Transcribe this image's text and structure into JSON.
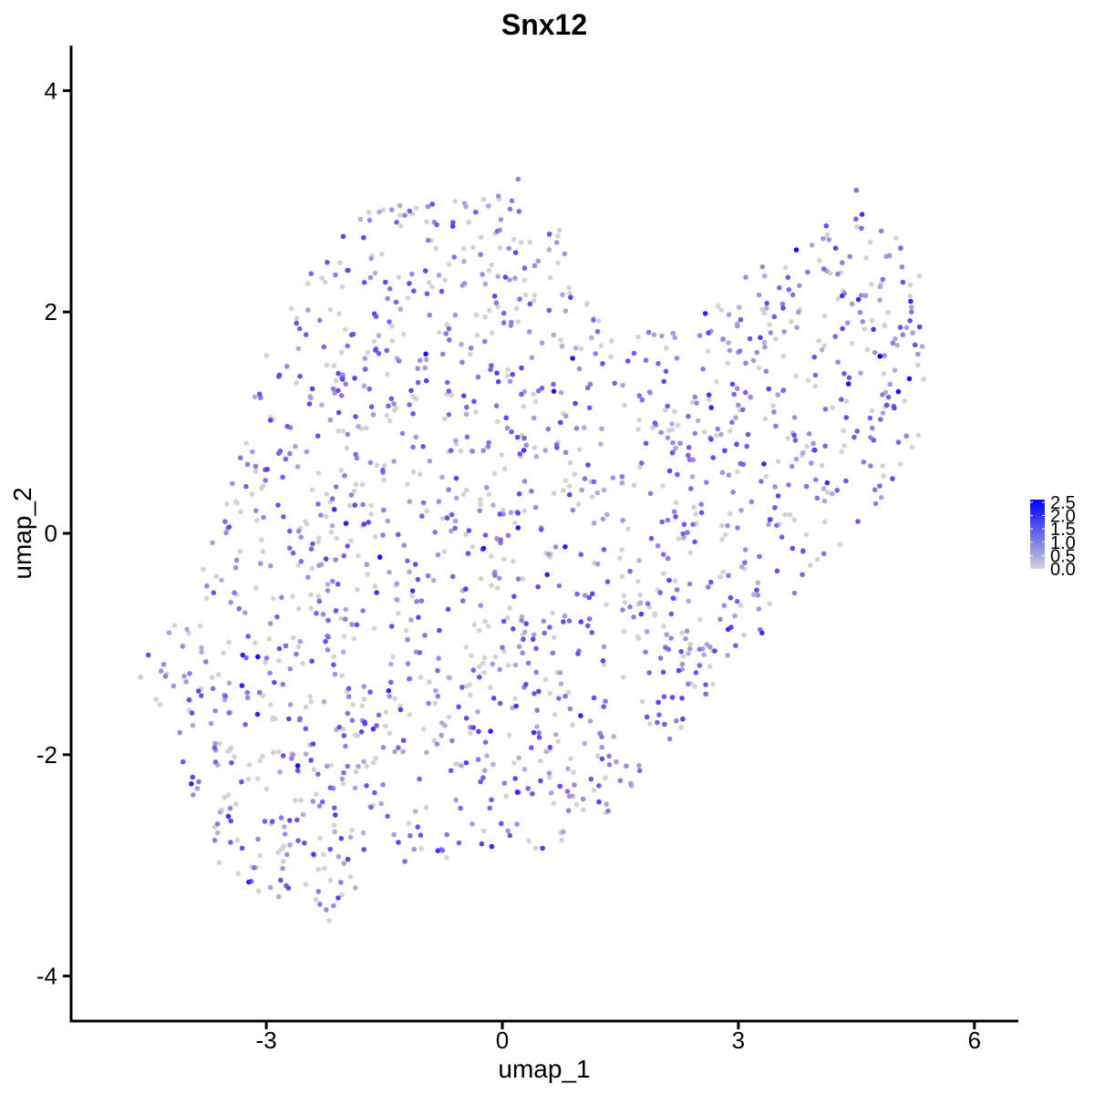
{
  "chart_data": {
    "type": "scatter",
    "title": "Snx12",
    "xlabel": "umap_1",
    "ylabel": "umap_2",
    "xlim": [
      -5.4,
      6.6
    ],
    "ylim": [
      -4.3,
      4.4
    ],
    "x_ticks": [
      -3,
      0,
      3,
      6
    ],
    "y_ticks": [
      -4,
      -2,
      0,
      2,
      4
    ],
    "x_tick_labels": [
      "-3",
      "0",
      "3",
      "6"
    ],
    "y_tick_labels": [
      "-4",
      "-2",
      "0",
      "2",
      "4"
    ],
    "grid": false,
    "legend": {
      "placement": "right",
      "type": "colorbar",
      "min": 0.0,
      "max": 2.6,
      "ticks": [
        0.0,
        0.5,
        1.0,
        1.5,
        2.0,
        2.5
      ],
      "labels": [
        "0.0",
        "0.5",
        "1.0",
        "1.5",
        "2.0",
        "2.5"
      ],
      "low_color": "#d3d3d3",
      "high_color": "#0000ff"
    },
    "cluster_outline": [
      [
        -4.6,
        -1.3
      ],
      [
        -4.2,
        -1.8
      ],
      [
        -4.0,
        -2.4
      ],
      [
        -3.6,
        -3.0
      ],
      [
        -3.0,
        -3.3
      ],
      [
        -2.3,
        -3.5
      ],
      [
        -1.7,
        -3.1
      ],
      [
        -1.0,
        -2.9
      ],
      [
        -0.2,
        -3.0
      ],
      [
        0.6,
        -2.9
      ],
      [
        1.4,
        -2.5
      ],
      [
        2.2,
        -1.9
      ],
      [
        2.8,
        -1.3
      ],
      [
        3.5,
        -0.7
      ],
      [
        4.2,
        -0.2
      ],
      [
        4.9,
        0.2
      ],
      [
        5.3,
        0.9
      ],
      [
        5.4,
        1.6
      ],
      [
        5.4,
        2.2
      ],
      [
        5.1,
        2.6
      ],
      [
        4.7,
        2.9
      ],
      [
        4.3,
        3.0
      ],
      [
        4.0,
        2.7
      ],
      [
        3.4,
        2.5
      ],
      [
        2.6,
        2.2
      ],
      [
        2.0,
        1.9
      ],
      [
        1.5,
        1.7
      ],
      [
        1.1,
        2.2
      ],
      [
        0.7,
        2.8
      ],
      [
        0.2,
        3.1
      ],
      [
        -0.5,
        3.0
      ],
      [
        -1.2,
        3.0
      ],
      [
        -1.9,
        2.9
      ],
      [
        -2.5,
        2.3
      ],
      [
        -3.0,
        1.6
      ],
      [
        -3.3,
        0.9
      ],
      [
        -3.6,
        0.1
      ],
      [
        -3.9,
        -0.5
      ],
      [
        -4.3,
        -0.9
      ]
    ],
    "point_samples": [
      {
        "x": -4.6,
        "y": -1.3,
        "value": 0.1
      },
      {
        "x": -4.5,
        "y": -1.1,
        "value": 1.6
      },
      {
        "x": -4.4,
        "y": -1.5,
        "value": 0.0
      },
      {
        "x": -4.1,
        "y": -1.8,
        "value": 0.9
      },
      {
        "x": -3.3,
        "y": -1.1,
        "value": 2.1
      },
      {
        "x": -2.6,
        "y": -2.1,
        "value": 2.4
      },
      {
        "x": -2.4,
        "y": -2.9,
        "value": 1.8
      },
      {
        "x": -2.2,
        "y": -3.5,
        "value": 0.0
      },
      {
        "x": -0.6,
        "y": 3.0,
        "value": 0.0
      },
      {
        "x": 0.2,
        "y": 3.2,
        "value": 0.9
      },
      {
        "x": 0.2,
        "y": 0.05,
        "value": 2.2
      },
      {
        "x": 0.4,
        "y": -1.8,
        "value": 1.9
      },
      {
        "x": 1.0,
        "y": -0.8,
        "value": 1.7
      },
      {
        "x": 3.3,
        "y": -0.9,
        "value": 2.0
      },
      {
        "x": 3.6,
        "y": 2.4,
        "value": 0.0
      },
      {
        "x": 4.4,
        "y": 1.35,
        "value": 2.3
      },
      {
        "x": 4.5,
        "y": 3.1,
        "value": 1.2
      },
      {
        "x": 4.8,
        "y": 1.6,
        "value": 2.6
      },
      {
        "x": 5.2,
        "y": 2.0,
        "value": 1.1
      }
    ]
  }
}
